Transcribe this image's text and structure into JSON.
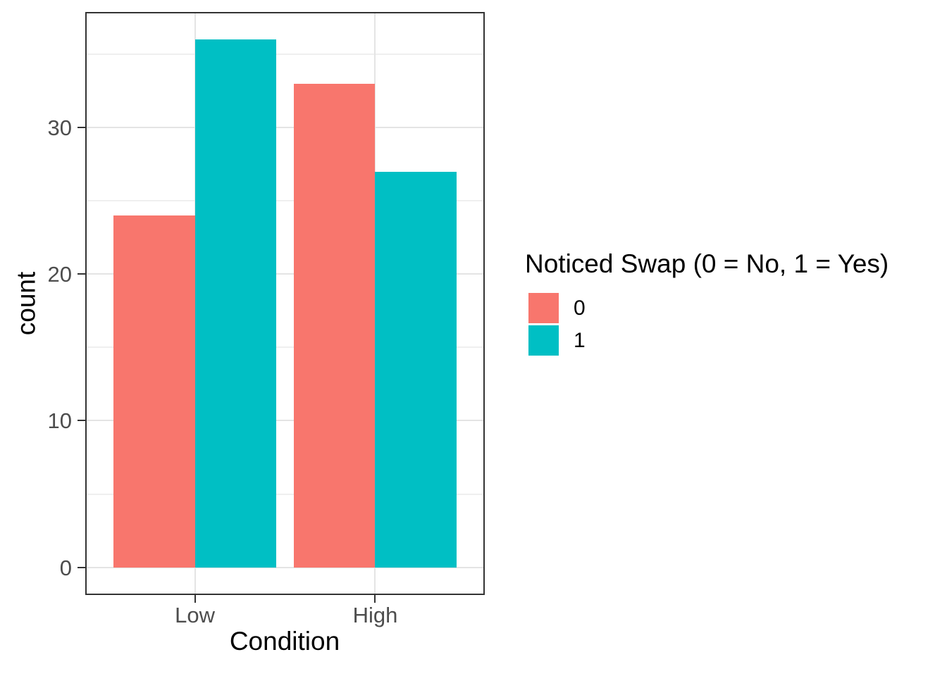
{
  "figure": {
    "background": "#ffffff"
  },
  "chart_data": {
    "type": "bar",
    "title": "",
    "xlabel": "Condition",
    "ylabel": "count",
    "categories": [
      "Low",
      "High"
    ],
    "series": [
      {
        "name": "0",
        "color": "#F8766D",
        "values": [
          24,
          33
        ]
      },
      {
        "name": "1",
        "color": "#00BFC4",
        "values": [
          36,
          27
        ]
      }
    ],
    "y_major_ticks": [
      0,
      10,
      20,
      30
    ],
    "y_minor_ticks": [
      5,
      15,
      25,
      35
    ],
    "ylim": [
      -1.8,
      37.8
    ],
    "xlim": [
      0.4,
      2.6
    ],
    "bar_width": 0.45,
    "grid": true,
    "legend": {
      "title": "Noticed Swap (0 = No, 1 = Yes)",
      "position": "right",
      "entries": [
        {
          "label": "0",
          "color": "#F8766D"
        },
        {
          "label": "1",
          "color": "#00BFC4"
        }
      ]
    },
    "style": {
      "panel_border": "#333333",
      "grid_major": "#e4e4e4",
      "grid_minor": "#efefef",
      "tick_color": "#333333",
      "tick_label_color": "#4d4d4d",
      "axis_title_color": "#000000"
    }
  }
}
